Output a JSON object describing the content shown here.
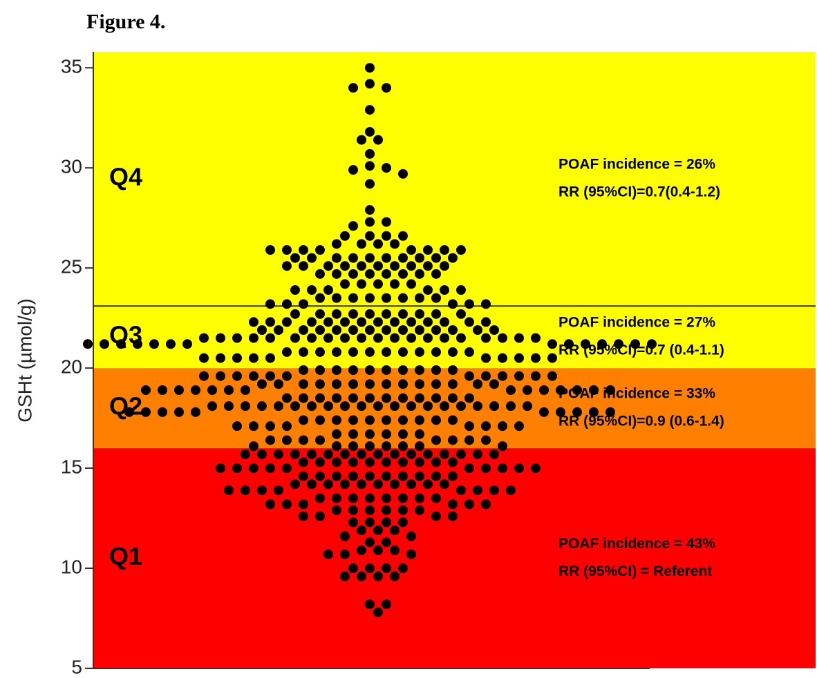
{
  "chart_data": {
    "type": "beeswarm",
    "title": "Figure 4.",
    "y_label": "GSHt (µmol/g)",
    "ylim": [
      5,
      35.8
    ],
    "yticks": [
      5,
      10,
      15,
      20,
      25,
      30,
      35
    ],
    "divider_lines": [
      23.1
    ],
    "bands": [
      {
        "label": "Q4",
        "from": 23.1,
        "to": 35.8,
        "color": "#ffff00",
        "annotation": [
          "POAF incidence = 26%",
          "RR (95%CI)=0.7(0.4-1.2)"
        ]
      },
      {
        "label": "Q3",
        "from": 20,
        "to": 23.1,
        "color": "#ffff00",
        "annotation": [
          "POAF incidence = 27%",
          "RR (95%CI)=0.7 (0.4-1.1)"
        ]
      },
      {
        "label": "Q2",
        "from": 16,
        "to": 20,
        "color": "#ff8000",
        "annotation": [
          "POAF incidence = 33%",
          "RR (95%CI)=0.9 (0.6-1.4)"
        ]
      },
      {
        "label": "Q1",
        "from": 5,
        "to": 16,
        "color": "#ff0000",
        "annotation": [
          "POAF incidence = 43%",
          "RR (95%CI) = Referent"
        ]
      }
    ],
    "color": "#000000",
    "values": [
      35.0,
      34.2,
      34.0,
      34.0,
      32.9,
      31.8,
      31.4,
      31.4,
      30.7,
      30.1,
      30.0,
      29.9,
      29.7,
      29.2,
      27.9,
      27.3,
      27.3,
      27.1,
      26.6,
      26.6,
      26.6,
      26.6,
      26.2,
      26.2,
      26.2,
      26.2,
      25.9,
      25.9,
      25.9,
      25.9,
      25.9,
      25.9,
      25.9,
      25.9,
      25.5,
      25.5,
      25.5,
      25.5,
      25.5,
      25.5,
      25.5,
      25.5,
      25.5,
      25.5,
      25.1,
      25.1,
      25.1,
      25.1,
      25.1,
      25.1,
      25.1,
      25.1,
      25.1,
      25.1,
      24.7,
      24.7,
      24.7,
      24.7,
      24.7,
      24.7,
      24.7,
      24.7,
      24.2,
      24.2,
      24.2,
      24.2,
      24.2,
      23.9,
      23.9,
      23.9,
      23.9,
      23.9,
      23.9,
      23.5,
      23.5,
      23.5,
      23.5,
      23.5,
      23.5,
      23.5,
      23.5,
      23.2,
      23.2,
      23.2,
      23.2,
      23.2,
      23.2,
      22.7,
      22.7,
      22.7,
      22.7,
      22.7,
      22.7,
      22.7,
      22.7,
      22.7,
      22.7,
      22.3,
      22.3,
      22.3,
      22.3,
      22.3,
      22.3,
      22.3,
      22.3,
      22.3,
      22.3,
      22.3,
      22.3,
      22.3,
      22.3,
      21.9,
      21.9,
      21.9,
      21.9,
      21.9,
      21.9,
      21.9,
      21.9,
      21.9,
      21.9,
      21.9,
      21.9,
      21.9,
      21.9,
      21.5,
      21.5,
      21.5,
      21.5,
      21.5,
      21.5,
      21.5,
      21.5,
      21.5,
      21.5,
      21.5,
      21.5,
      21.5,
      21.5,
      21.5,
      21.5,
      21.5,
      21.5,
      21.5,
      21.5,
      21.2,
      21.2,
      21.2,
      21.2,
      21.2,
      21.2,
      21.2,
      21.2,
      21.2,
      21.2,
      21.2,
      21.2,
      21.2,
      21.2,
      20.8,
      20.8,
      20.8,
      20.8,
      20.8,
      20.8,
      20.8,
      20.8,
      20.8,
      20.8,
      20.8,
      20.8,
      20.5,
      20.5,
      20.5,
      20.5,
      20.5,
      20.5,
      20.5,
      20.5,
      20.5,
      20.5,
      19.9,
      19.9,
      19.9,
      19.9,
      19.9,
      19.9,
      19.9,
      19.9,
      19.9,
      19.9,
      19.6,
      19.6,
      19.6,
      19.6,
      19.6,
      19.6,
      19.6,
      19.6,
      19.6,
      19.6,
      19.6,
      19.6,
      19.2,
      19.2,
      19.2,
      19.2,
      19.2,
      19.2,
      19.2,
      19.2,
      19.2,
      19.2,
      19.2,
      19.2,
      19.2,
      19.2,
      18.9,
      18.9,
      18.9,
      18.9,
      18.9,
      18.9,
      18.9,
      18.9,
      18.9,
      18.9,
      18.9,
      18.9,
      18.9,
      18.9,
      18.5,
      18.5,
      18.5,
      18.5,
      18.5,
      18.5,
      18.5,
      18.5,
      18.5,
      18.5,
      18.5,
      18.5,
      18.1,
      18.1,
      18.1,
      18.1,
      18.1,
      18.1,
      18.1,
      18.1,
      18.1,
      18.1,
      18.1,
      18.1,
      18.1,
      18.1,
      18.1,
      18.1,
      18.1,
      18.1,
      18.1,
      18.1,
      17.8,
      17.8,
      17.8,
      17.8,
      17.8,
      17.8,
      17.8,
      17.8,
      17.8,
      17.8,
      17.4,
      17.4,
      17.4,
      17.4,
      17.4,
      17.4,
      17.4,
      17.4,
      17.4,
      17.4,
      17.1,
      17.1,
      17.1,
      17.1,
      17.1,
      17.1,
      17.1,
      17.1,
      16.7,
      16.7,
      16.7,
      16.7,
      16.7,
      16.7,
      16.4,
      16.4,
      16.4,
      16.4,
      16.4,
      16.4,
      16.4,
      16.4,
      16.1,
      16.1,
      16.1,
      16.1,
      16.1,
      16.1,
      16.1,
      16.1,
      15.7,
      15.7,
      15.7,
      15.7,
      15.7,
      15.7,
      15.7,
      15.7,
      15.7,
      15.7,
      15.7,
      15.7,
      15.7,
      15.7,
      15.7,
      15.7,
      15.3,
      15.3,
      15.3,
      15.3,
      15.3,
      15.3,
      15.3,
      15.3,
      15.3,
      15.3,
      15.0,
      15.0,
      15.0,
      15.0,
      15.0,
      15.0,
      15.0,
      15.0,
      15.0,
      15.0,
      14.6,
      14.6,
      14.6,
      14.6,
      14.6,
      14.6,
      14.6,
      14.6,
      14.6,
      14.6,
      14.2,
      14.2,
      14.2,
      14.2,
      14.2,
      14.2,
      14.2,
      14.2,
      14.2,
      14.2,
      13.9,
      13.9,
      13.9,
      13.9,
      13.9,
      13.9,
      13.9,
      13.9,
      13.5,
      13.5,
      13.5,
      13.5,
      13.5,
      13.5,
      13.5,
      13.5,
      13.2,
      13.2,
      13.2,
      13.2,
      13.2,
      13.2,
      12.9,
      12.9,
      12.9,
      12.9,
      12.9,
      12.9,
      12.6,
      12.6,
      12.6,
      12.6,
      12.3,
      12.3,
      12.3,
      12.3,
      11.9,
      11.9,
      11.9,
      11.6,
      11.6,
      11.3,
      11.3,
      10.9,
      10.9,
      10.9,
      10.7,
      10.7,
      10.7,
      10.0,
      10.0,
      10.0,
      10.0,
      9.6,
      9.6,
      9.6,
      9.6,
      8.2,
      8.2,
      7.8
    ]
  }
}
